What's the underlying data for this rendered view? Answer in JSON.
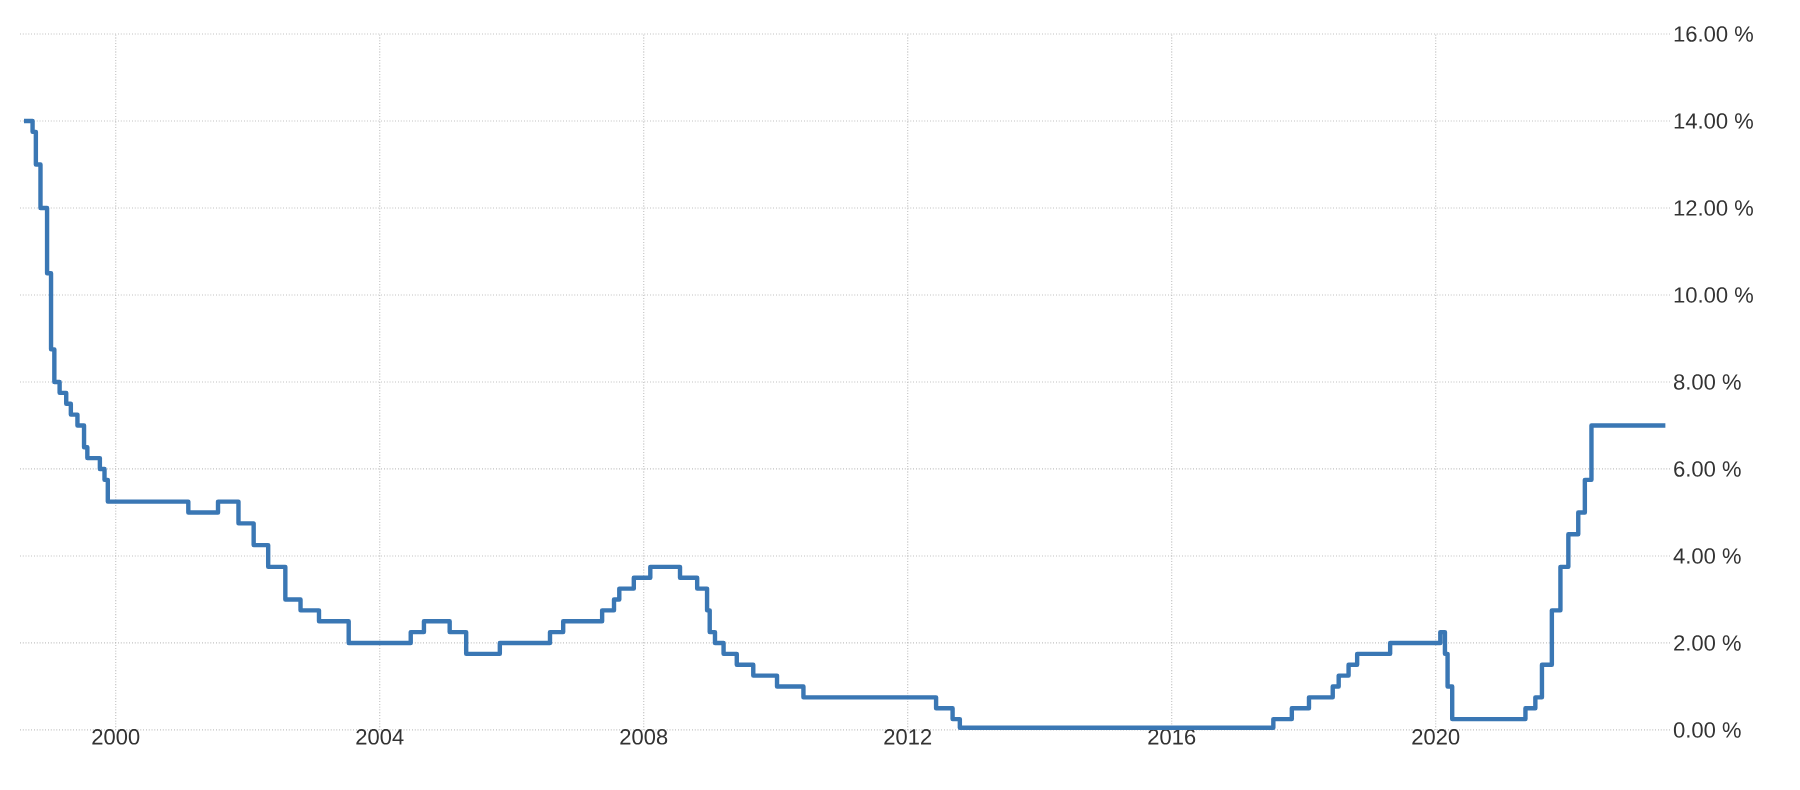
{
  "chart_data": {
    "type": "step",
    "xlim": [
      1998.55,
      2023.55
    ],
    "ylim": [
      0,
      16
    ],
    "xticks": [
      2000,
      2004,
      2008,
      2012,
      2016,
      2020
    ],
    "yticks": [
      {
        "value": 0,
        "label": "0.00 %"
      },
      {
        "value": 2,
        "label": "2.00 %"
      },
      {
        "value": 4,
        "label": "4.00 %"
      },
      {
        "value": 6,
        "label": "6.00 %"
      },
      {
        "value": 8,
        "label": "8.00 %"
      },
      {
        "value": 10,
        "label": "10.00 %"
      },
      {
        "value": 12,
        "label": "12.00 %"
      },
      {
        "value": 14,
        "label": "14.00 %"
      },
      {
        "value": 16,
        "label": "16.00 %"
      }
    ],
    "grid": true,
    "marker": "none",
    "line_style": "solid",
    "series": [
      {
        "color": "#3a77b4",
        "x": [
          1998.61,
          1998.74,
          1998.79,
          1998.86,
          1998.96,
          1999.02,
          1999.07,
          1999.15,
          1999.25,
          1999.32,
          1999.42,
          1999.52,
          1999.57,
          1999.76,
          1999.83,
          1999.88,
          2001.1,
          2001.55,
          2001.86,
          2002.09,
          2002.31,
          2002.57,
          2002.8,
          2003.08,
          2003.53,
          2004.47,
          2004.67,
          2005.06,
          2005.31,
          2005.82,
          2006.58,
          2006.78,
          2007.37,
          2007.55,
          2007.63,
          2007.85,
          2008.1,
          2008.55,
          2008.81,
          2008.96,
          2009.0,
          2009.08,
          2009.21,
          2009.41,
          2009.66,
          2010.02,
          2010.42,
          2012.43,
          2012.68,
          2012.79,
          2017.54,
          2017.82,
          2018.08,
          2018.44,
          2018.53,
          2018.68,
          2018.81,
          2019.31,
          2020.07,
          2020.14,
          2020.18,
          2020.25,
          2021.36,
          2021.51,
          2021.61,
          2021.76,
          2021.89,
          2022.01,
          2022.16,
          2022.26,
          2022.36,
          2023.48
        ],
        "values": [
          14.0,
          13.75,
          13.0,
          12.0,
          10.5,
          8.75,
          8.0,
          7.75,
          7.5,
          7.25,
          7.0,
          6.5,
          6.25,
          6.0,
          5.75,
          5.25,
          5.0,
          5.25,
          4.75,
          4.25,
          3.75,
          3.0,
          2.75,
          2.5,
          2.0,
          2.25,
          2.5,
          2.25,
          1.75,
          2.0,
          2.25,
          2.5,
          2.75,
          3.0,
          3.25,
          3.5,
          3.75,
          3.5,
          3.25,
          2.75,
          2.25,
          2.0,
          1.75,
          1.5,
          1.25,
          1.0,
          0.75,
          0.5,
          0.25,
          0.05,
          0.25,
          0.5,
          0.75,
          1.0,
          1.25,
          1.5,
          1.75,
          2.0,
          2.25,
          1.75,
          1.0,
          0.25,
          0.5,
          0.75,
          1.5,
          2.75,
          3.75,
          4.5,
          5.0,
          5.75,
          7.0,
          7.0
        ]
      }
    ]
  }
}
